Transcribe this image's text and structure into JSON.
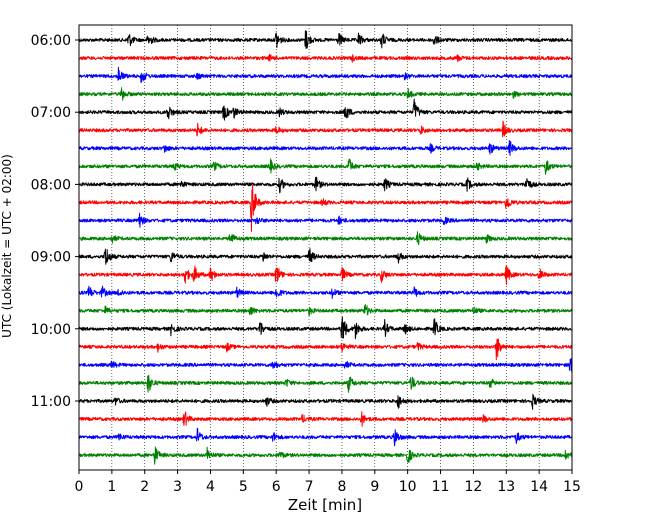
{
  "chart_data": {
    "type": "line",
    "title": "",
    "xlabel": "Zeit  [min]",
    "ylabel": "UTC (Lokalzeit = UTC + 02:00)",
    "xlim": [
      0,
      15
    ],
    "xticks": [
      0,
      1,
      2,
      3,
      4,
      5,
      6,
      7,
      8,
      9,
      10,
      11,
      12,
      13,
      14,
      15
    ],
    "ytick_labels": [
      "06:00",
      "07:00",
      "08:00",
      "09:00",
      "10:00",
      "11:00"
    ],
    "grid": "vertical dotted",
    "trace_interval_minutes": 15,
    "start_time": "06:00",
    "colors": [
      "#000000",
      "#ff0000",
      "#0000ff",
      "#008000"
    ],
    "traces": [
      {
        "start": "06:00",
        "events": [
          [
            1.5,
            9
          ],
          [
            2.1,
            8
          ],
          [
            6.0,
            10
          ],
          [
            6.9,
            12
          ],
          [
            7.9,
            7
          ],
          [
            8.5,
            7
          ],
          [
            9.2,
            9
          ],
          [
            10.8,
            6
          ]
        ]
      },
      {
        "start": "06:15",
        "events": [
          [
            5.8,
            3
          ],
          [
            8.3,
            3
          ],
          [
            11.5,
            3
          ]
        ]
      },
      {
        "start": "06:30",
        "events": [
          [
            1.2,
            9
          ],
          [
            1.9,
            8
          ],
          [
            3.6,
            3
          ],
          [
            9.9,
            3
          ]
        ]
      },
      {
        "start": "06:45",
        "events": [
          [
            1.3,
            7
          ],
          [
            10.0,
            5
          ],
          [
            13.2,
            3
          ]
        ]
      },
      {
        "start": "07:00",
        "events": [
          [
            2.7,
            9
          ],
          [
            4.4,
            9
          ],
          [
            4.7,
            6
          ],
          [
            8.1,
            10
          ],
          [
            10.2,
            13
          ],
          [
            6.1,
            4
          ]
        ]
      },
      {
        "start": "07:15",
        "events": [
          [
            3.6,
            7
          ],
          [
            6.0,
            4
          ],
          [
            10.4,
            4
          ],
          [
            12.9,
            8
          ]
        ]
      },
      {
        "start": "07:30",
        "events": [
          [
            2.6,
            4
          ],
          [
            10.7,
            4
          ],
          [
            12.5,
            6
          ],
          [
            13.1,
            8
          ]
        ]
      },
      {
        "start": "07:45",
        "events": [
          [
            2.9,
            4
          ],
          [
            4.1,
            5
          ],
          [
            5.8,
            8
          ],
          [
            8.2,
            9
          ],
          [
            12.1,
            4
          ],
          [
            14.2,
            8
          ]
        ]
      },
      {
        "start": "08:00",
        "events": [
          [
            6.1,
            8
          ],
          [
            7.2,
            8
          ],
          [
            9.3,
            7
          ],
          [
            11.8,
            7
          ],
          [
            13.6,
            10
          ],
          [
            3.1,
            4
          ]
        ]
      },
      {
        "start": "08:15",
        "events": [
          [
            5.25,
            28
          ],
          [
            13.0,
            9
          ],
          [
            7.4,
            4
          ]
        ]
      },
      {
        "start": "08:30",
        "events": [
          [
            1.8,
            10
          ],
          [
            5.4,
            4
          ],
          [
            7.9,
            4
          ],
          [
            11.1,
            4
          ]
        ]
      },
      {
        "start": "08:45",
        "events": [
          [
            1.0,
            4
          ],
          [
            4.6,
            8
          ],
          [
            10.3,
            7
          ],
          [
            12.4,
            4
          ]
        ]
      },
      {
        "start": "09:00",
        "events": [
          [
            0.8,
            13
          ],
          [
            2.8,
            6
          ],
          [
            7.0,
            9
          ],
          [
            9.7,
            6
          ],
          [
            5.6,
            5
          ]
        ]
      },
      {
        "start": "09:15",
        "events": [
          [
            3.2,
            12
          ],
          [
            3.5,
            9
          ],
          [
            4.0,
            8
          ],
          [
            6.0,
            12
          ],
          [
            8.0,
            7
          ],
          [
            9.2,
            7
          ],
          [
            13.0,
            10
          ],
          [
            14.0,
            6
          ]
        ]
      },
      {
        "start": "09:30",
        "events": [
          [
            0.3,
            7
          ],
          [
            0.7,
            6
          ],
          [
            1.2,
            4
          ],
          [
            4.8,
            5
          ],
          [
            6.0,
            7
          ],
          [
            7.7,
            5
          ],
          [
            10.2,
            5
          ]
        ]
      },
      {
        "start": "09:45",
        "events": [
          [
            0.8,
            4
          ],
          [
            5.2,
            5
          ],
          [
            7.0,
            4
          ],
          [
            8.7,
            7
          ],
          [
            12.0,
            4
          ]
        ]
      },
      {
        "start": "10:00",
        "events": [
          [
            2.8,
            6
          ],
          [
            5.5,
            9
          ],
          [
            8.0,
            18
          ],
          [
            8.4,
            10
          ],
          [
            9.3,
            8
          ],
          [
            10.8,
            11
          ],
          [
            9.9,
            6
          ]
        ]
      },
      {
        "start": "10:15",
        "events": [
          [
            2.4,
            4
          ],
          [
            4.5,
            4
          ],
          [
            8.0,
            5
          ],
          [
            12.7,
            14
          ],
          [
            10.3,
            4
          ]
        ]
      },
      {
        "start": "10:30",
        "events": [
          [
            1.0,
            4
          ],
          [
            5.9,
            5
          ],
          [
            8.1,
            4
          ],
          [
            14.95,
            12
          ]
        ]
      },
      {
        "start": "10:45",
        "events": [
          [
            2.1,
            11
          ],
          [
            8.2,
            9
          ],
          [
            10.1,
            8
          ],
          [
            12.5,
            5
          ],
          [
            6.3,
            4
          ]
        ]
      },
      {
        "start": "11:00",
        "events": [
          [
            1.1,
            4
          ],
          [
            5.7,
            5
          ],
          [
            9.7,
            8
          ],
          [
            13.8,
            7
          ]
        ]
      },
      {
        "start": "11:15",
        "events": [
          [
            3.2,
            9
          ],
          [
            8.6,
            7
          ],
          [
            12.3,
            4
          ],
          [
            6.8,
            4
          ]
        ]
      },
      {
        "start": "11:30",
        "events": [
          [
            1.2,
            4
          ],
          [
            3.6,
            8
          ],
          [
            5.9,
            5
          ],
          [
            9.6,
            10
          ],
          [
            13.3,
            6
          ]
        ]
      },
      {
        "start": "11:45",
        "events": [
          [
            2.3,
            10
          ],
          [
            3.9,
            7
          ],
          [
            10.0,
            9
          ],
          [
            14.8,
            6
          ],
          [
            6.1,
            4
          ]
        ]
      }
    ]
  }
}
